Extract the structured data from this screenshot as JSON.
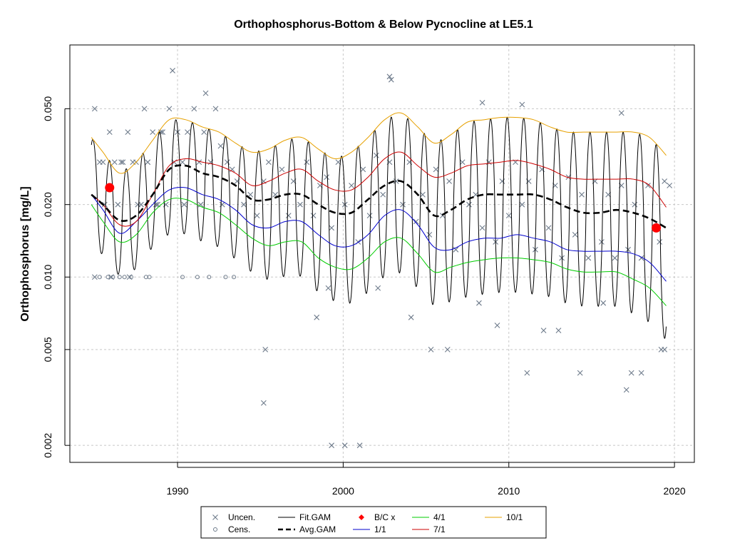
{
  "chart_data": {
    "type": "scatter",
    "title": "Orthophosphorus-Bottom & Below Pycnocline at LE5.1",
    "xlabel": "",
    "ylabel": "Orthophosphorus [mg/L]",
    "y_scale": "log",
    "xlim": [
      1983.5,
      2021.2
    ],
    "ylim": [
      0.0017,
      0.092
    ],
    "x_ticks": [
      1990,
      2000,
      2010,
      2020
    ],
    "x_tick_labels": [
      "1990",
      "2000",
      "2010",
      "2020"
    ],
    "y_ticks": [
      0.002,
      0.005,
      0.01,
      0.02,
      0.05
    ],
    "y_tick_labels": [
      "0.002",
      "0.005",
      "0.010",
      "0.020",
      "0.050"
    ],
    "grid": true,
    "legend_placement": "bottom-center",
    "legend": [
      {
        "label": "Uncen.",
        "marker": "x",
        "color": "#6e7b8b"
      },
      {
        "label": "Cens.",
        "marker": "o",
        "color": "#6e7b8b"
      },
      {
        "label": "Fit.GAM",
        "line": "solid",
        "color": "#000000"
      },
      {
        "label": "Avg.GAM",
        "line": "dashed",
        "color": "#000000"
      },
      {
        "label": "B/C x",
        "marker": "diamond",
        "color": "#ff0000"
      },
      {
        "label": "1/1",
        "line": "solid",
        "color": "#0000cc"
      },
      {
        "label": "4/1",
        "line": "solid",
        "color": "#00cc00"
      },
      {
        "label": "7/1",
        "line": "solid",
        "color": "#cc0000"
      },
      {
        "label": "10/1",
        "line": "solid",
        "color": "#e6a000"
      }
    ],
    "series": [
      {
        "name": "Avg.GAM",
        "x": [
          1984.8,
          1985.5,
          1986.5,
          1987.5,
          1988.5,
          1989.5,
          1990.5,
          1991.5,
          1992.5,
          1993.5,
          1994.5,
          1995.5,
          1996.5,
          1997.5,
          1998.5,
          1999.5,
          2000.5,
          2001.5,
          2002.5,
          2003.5,
          2004.5,
          2005.5,
          2006.5,
          2007.5,
          2008.5,
          2009.5,
          2010.5,
          2011.5,
          2012.5,
          2013.5,
          2014.5,
          2015.5,
          2016.5,
          2017.5,
          2018.5,
          2019.5
        ],
        "y": [
          0.022,
          0.02,
          0.0172,
          0.018,
          0.022,
          0.028,
          0.029,
          0.027,
          0.026,
          0.024,
          0.021,
          0.021,
          0.022,
          0.022,
          0.02,
          0.0185,
          0.0185,
          0.021,
          0.024,
          0.025,
          0.022,
          0.018,
          0.019,
          0.021,
          0.022,
          0.022,
          0.022,
          0.022,
          0.021,
          0.0195,
          0.0185,
          0.0185,
          0.019,
          0.0185,
          0.0175,
          0.016
        ]
      },
      {
        "name": "1/1",
        "x": [
          1984.8,
          1985.5,
          1986.5,
          1987.5,
          1988.5,
          1989.5,
          1990.5,
          1991.5,
          1992.5,
          1993.5,
          1994.5,
          1995.5,
          1996.5,
          1997.5,
          1998.5,
          1999.5,
          2000.5,
          2001.5,
          2002.5,
          2003.5,
          2004.5,
          2005.5,
          2006.5,
          2007.5,
          2008.5,
          2009.5,
          2010.5,
          2011.5,
          2012.5,
          2013.5,
          2014.5,
          2015.5,
          2016.5,
          2017.5,
          2018.5,
          2019.5
        ],
        "y": [
          0.022,
          0.019,
          0.0152,
          0.017,
          0.02,
          0.023,
          0.0235,
          0.022,
          0.021,
          0.019,
          0.0165,
          0.016,
          0.017,
          0.017,
          0.015,
          0.0135,
          0.0135,
          0.015,
          0.018,
          0.019,
          0.0165,
          0.0133,
          0.013,
          0.014,
          0.0145,
          0.0145,
          0.015,
          0.0145,
          0.014,
          0.013,
          0.0128,
          0.0128,
          0.0128,
          0.0125,
          0.0115,
          0.0096
        ]
      },
      {
        "name": "4/1",
        "x": [
          1984.8,
          1985.5,
          1986.5,
          1987.5,
          1988.5,
          1989.5,
          1990.5,
          1991.5,
          1992.5,
          1993.5,
          1994.5,
          1995.5,
          1996.5,
          1997.5,
          1998.5,
          1999.5,
          2000.5,
          2001.5,
          2002.5,
          2003.5,
          2004.5,
          2005.5,
          2006.5,
          2007.5,
          2008.5,
          2009.5,
          2010.5,
          2011.5,
          2012.5,
          2013.5,
          2014.5,
          2015.5,
          2016.5,
          2017.5,
          2018.5,
          2019.5
        ],
        "y": [
          0.02,
          0.017,
          0.014,
          0.015,
          0.0185,
          0.021,
          0.021,
          0.0195,
          0.0185,
          0.0165,
          0.0145,
          0.0135,
          0.014,
          0.014,
          0.012,
          0.011,
          0.0108,
          0.012,
          0.014,
          0.0145,
          0.0125,
          0.0105,
          0.011,
          0.0115,
          0.0118,
          0.012,
          0.012,
          0.0118,
          0.0115,
          0.0108,
          0.0105,
          0.0105,
          0.0105,
          0.0098,
          0.009,
          0.0076
        ]
      },
      {
        "name": "7/1",
        "x": [
          1984.8,
          1985.5,
          1986.5,
          1987.5,
          1988.5,
          1989.5,
          1990.5,
          1991.5,
          1992.5,
          1993.5,
          1994.5,
          1995.5,
          1996.5,
          1997.5,
          1998.5,
          1999.5,
          2000.5,
          2001.5,
          2002.5,
          2003.5,
          2004.5,
          2005.5,
          2006.5,
          2007.5,
          2008.5,
          2009.5,
          2010.5,
          2011.5,
          2012.5,
          2013.5,
          2014.5,
          2015.5,
          2016.5,
          2017.5,
          2018.5,
          2019.5
        ],
        "y": [
          0.022,
          0.02,
          0.0165,
          0.017,
          0.022,
          0.029,
          0.031,
          0.03,
          0.029,
          0.027,
          0.024,
          0.025,
          0.027,
          0.028,
          0.025,
          0.023,
          0.023,
          0.026,
          0.031,
          0.033,
          0.029,
          0.026,
          0.027,
          0.029,
          0.0295,
          0.03,
          0.0305,
          0.0295,
          0.028,
          0.026,
          0.0255,
          0.0255,
          0.0255,
          0.0255,
          0.024,
          0.0195
        ]
      },
      {
        "name": "10/1",
        "x": [
          1984.8,
          1985.5,
          1986.5,
          1987.5,
          1988.5,
          1989.5,
          1990.5,
          1991.5,
          1992.5,
          1993.5,
          1994.5,
          1995.5,
          1996.5,
          1997.5,
          1998.5,
          1999.5,
          2000.5,
          2001.5,
          2002.5,
          2003.5,
          2004.5,
          2005.5,
          2006.5,
          2007.5,
          2008.5,
          2009.5,
          2010.5,
          2011.5,
          2012.5,
          2013.5,
          2014.5,
          2015.5,
          2016.5,
          2017.5,
          2018.5,
          2019.5
        ],
        "y": [
          0.038,
          0.033,
          0.027,
          0.03,
          0.037,
          0.045,
          0.045,
          0.042,
          0.04,
          0.036,
          0.033,
          0.034,
          0.037,
          0.038,
          0.034,
          0.031,
          0.033,
          0.038,
          0.045,
          0.048,
          0.042,
          0.036,
          0.039,
          0.044,
          0.045,
          0.046,
          0.046,
          0.045,
          0.042,
          0.04,
          0.04,
          0.04,
          0.04,
          0.04,
          0.038,
          0.032
        ]
      },
      {
        "name": "B/C x",
        "x": [
          1985.9,
          2018.9
        ],
        "y": [
          0.0235,
          0.016
        ]
      },
      {
        "name": "Uncen.",
        "x": [
          1985.0,
          1985.3,
          1985.6,
          1985.9,
          1986.2,
          1986.4,
          1986.7,
          1987.0,
          1987.3,
          1987.6,
          1988.0,
          1988.2,
          1988.5,
          1988.8,
          1989.1,
          1989.5,
          1989.8,
          1990.0,
          1990.3,
          1990.6,
          1991.0,
          1991.3,
          1991.6,
          1992.0,
          1992.3,
          1992.6,
          1993.0,
          1993.3,
          1993.6,
          1994.0,
          1994.4,
          1994.8,
          1995.2,
          1995.5,
          1995.9,
          1996.3,
          1996.7,
          1997.0,
          1997.4,
          1997.8,
          1998.2,
          1998.6,
          1999.0,
          1999.3,
          1999.7,
          2000.1,
          2000.5,
          2000.9,
          2001.2,
          2001.6,
          2002.0,
          2002.4,
          2002.8,
          2003.2,
          2003.6,
          2004.0,
          2004.4,
          2004.8,
          2005.2,
          2005.6,
          2006.0,
          2006.4,
          2006.8,
          2007.2,
          2007.6,
          2008.0,
          2008.4,
          2008.8,
          2009.2,
          2009.6,
          2010.0,
          2010.4,
          2010.8,
          2011.2,
          2011.6,
          2012.0,
          2012.4,
          2012.8,
          2013.2,
          2013.6,
          2014.0,
          2014.4,
          2014.8,
          2015.2,
          2015.6,
          2016.0,
          2016.4,
          2016.8,
          2017.2,
          2017.6,
          2018.0,
          2018.4,
          2018.8,
          2019.1,
          2019.4,
          2019.7,
          1989.7,
          1991.7,
          2002.8,
          2002.9,
          2008.4,
          2010.8,
          1995.3,
          1995.2,
          1998.4,
          1999.1,
          1999.3,
          2000.1,
          2001.0,
          2002.1,
          2004.1,
          2005.3,
          2006.3,
          2008.2,
          2009.3,
          2011.1,
          2012.1,
          2013.0,
          2014.3,
          2015.7,
          2016.8,
          2017.1,
          2017.4,
          2018.0,
          2019.2,
          2019.4,
          1985.0,
          1986.0,
          1987.1,
          1987.8,
          1988.7,
          1989.3,
          1990.4,
          1991.4,
          1992.7,
          1985.5,
          1986.6,
          1987.5,
          1988.2,
          1989.0
        ],
        "y": [
          0.05,
          0.03,
          0.02,
          0.04,
          0.03,
          0.02,
          0.03,
          0.04,
          0.03,
          0.02,
          0.05,
          0.03,
          0.04,
          0.02,
          0.04,
          0.05,
          0.03,
          0.04,
          0.03,
          0.04,
          0.05,
          0.03,
          0.04,
          0.03,
          0.05,
          0.035,
          0.03,
          0.028,
          0.025,
          0.02,
          0.022,
          0.018,
          0.025,
          0.03,
          0.022,
          0.028,
          0.018,
          0.025,
          0.02,
          0.03,
          0.018,
          0.024,
          0.026,
          0.016,
          0.03,
          0.02,
          0.024,
          0.014,
          0.028,
          0.018,
          0.032,
          0.022,
          0.03,
          0.025,
          0.02,
          0.03,
          0.017,
          0.022,
          0.015,
          0.028,
          0.018,
          0.025,
          0.013,
          0.03,
          0.02,
          0.022,
          0.016,
          0.03,
          0.014,
          0.025,
          0.018,
          0.03,
          0.02,
          0.025,
          0.013,
          0.028,
          0.016,
          0.024,
          0.012,
          0.026,
          0.015,
          0.022,
          0.012,
          0.025,
          0.014,
          0.022,
          0.012,
          0.024,
          0.013,
          0.02,
          0.012,
          0.024,
          0.016,
          0.014,
          0.025,
          0.024,
          0.072,
          0.058,
          0.068,
          0.066,
          0.053,
          0.052,
          0.005,
          0.003,
          0.0068,
          0.009,
          0.002,
          0.002,
          0.002,
          0.009,
          0.0068,
          0.005,
          0.005,
          0.0078,
          0.0063,
          0.004,
          0.006,
          0.006,
          0.004,
          0.0078,
          0.048,
          0.0034,
          0.004,
          0.004,
          0.005,
          0.005,
          0.01,
          0.01,
          0.01,
          0.02,
          0.02,
          0.02,
          0.02,
          0.02,
          0.02,
          0.03,
          0.03,
          0.03,
          0.03,
          0.04
        ]
      },
      {
        "name": "Cens.",
        "x": [
          1985.3,
          1985.8,
          1986.1,
          1986.5,
          1986.8,
          1987.2,
          1988.1,
          1988.3,
          1990.3,
          1991.2,
          1991.9,
          1992.9,
          1993.4
        ],
        "y": [
          0.01,
          0.01,
          0.01,
          0.01,
          0.01,
          0.01,
          0.01,
          0.01,
          0.01,
          0.01,
          0.01,
          0.01,
          0.01
        ]
      }
    ]
  }
}
